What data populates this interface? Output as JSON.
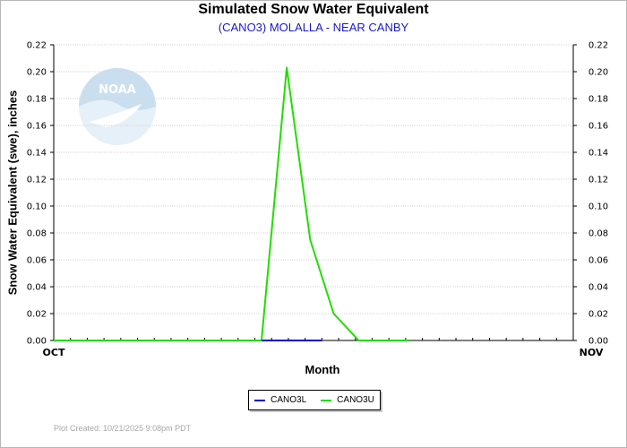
{
  "chart_data": {
    "type": "line",
    "title": "Simulated Snow Water Equivalent",
    "subtitle": "(CANO3) MOLALLA - NEAR CANBY",
    "xlabel": "Month",
    "ylabel": "Snow Water Equivalent (swe),  inches",
    "x_tick_labels": [
      "OCT",
      "NOV"
    ],
    "x_range_days": [
      0,
      31
    ],
    "ylim": [
      0,
      0.22
    ],
    "y_ticks": [
      "0.00",
      "0.02",
      "0.04",
      "0.06",
      "0.08",
      "0.10",
      "0.12",
      "0.14",
      "0.16",
      "0.18",
      "0.20",
      "0.22"
    ],
    "grid": "horizontal",
    "legend_position": "bottom-center",
    "series": [
      {
        "name": "CANO3L",
        "color": "#0000cc",
        "points": [
          [
            12.4,
            0.0
          ],
          [
            16.0,
            0.0
          ]
        ]
      },
      {
        "name": "CANO3U",
        "color": "#22dd00",
        "points": [
          [
            0,
            0.0
          ],
          [
            12.4,
            0.0
          ],
          [
            13.9,
            0.203
          ],
          [
            15.3,
            0.075
          ],
          [
            16.7,
            0.02
          ],
          [
            18.2,
            0.0
          ],
          [
            21.2,
            0.0
          ]
        ]
      }
    ]
  },
  "footer": "Plot Created:  10/21/2025  9:08pm PDT",
  "logo_text": "NOAA"
}
